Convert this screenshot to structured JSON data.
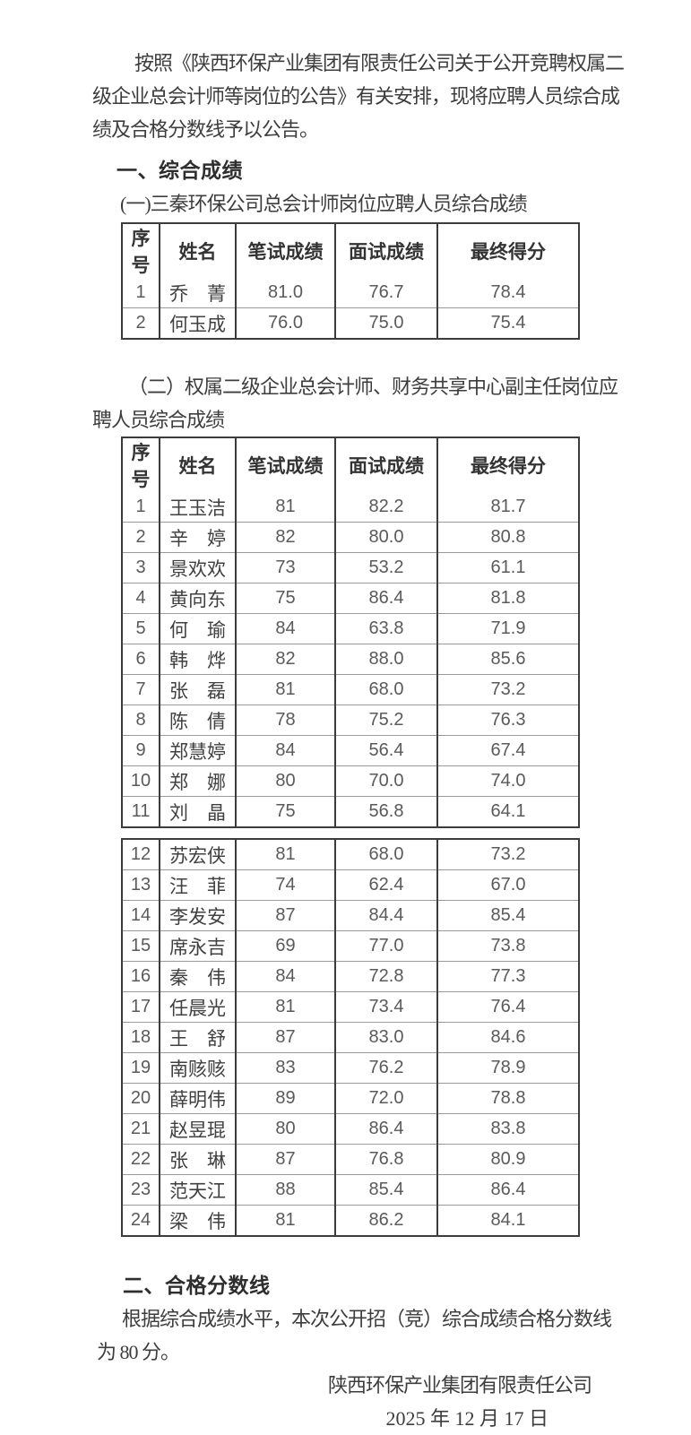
{
  "page": {
    "intro_lines": [
      "按照《陕西环保产业集团有限责任公司关于公开竞聘权属二",
      "级企业总会计师等岗位的公告》有关安排，现将应聘人员综合成",
      "绩及合格分数线予以公告。"
    ],
    "section1": {
      "heading": "一、综合成绩",
      "table1_title": "(一)三秦环保公司总会计师岗位应聘人员综合成绩",
      "table1": {
        "headers": [
          "序号",
          "姓名",
          "笔试成绩",
          "面试成绩",
          "最终得分"
        ],
        "rows": [
          [
            "1",
            "乔　菁",
            "81.0",
            "76.7",
            "78.4"
          ],
          [
            "2",
            "何玉成",
            "76.0",
            "75.0",
            "75.4"
          ]
        ]
      },
      "table2_title_lines": [
        "（二）权属二级企业总会计师、财务共享中心副主任岗位应",
        "聘人员综合成绩"
      ],
      "table2": {
        "headers": [
          "序号",
          "姓名",
          "笔试成绩",
          "面试成绩",
          "最终得分"
        ],
        "rows_part1": [
          [
            "1",
            "王玉洁",
            "81",
            "82.2",
            "81.7"
          ],
          [
            "2",
            "辛　婷",
            "82",
            "80.0",
            "80.8"
          ],
          [
            "3",
            "景欢欢",
            "73",
            "53.2",
            "61.1"
          ],
          [
            "4",
            "黄向东",
            "75",
            "86.4",
            "81.8"
          ],
          [
            "5",
            "何　瑜",
            "84",
            "63.8",
            "71.9"
          ],
          [
            "6",
            "韩　烨",
            "82",
            "88.0",
            "85.6"
          ],
          [
            "7",
            "张　磊",
            "81",
            "68.0",
            "73.2"
          ],
          [
            "8",
            "陈　倩",
            "78",
            "75.2",
            "76.3"
          ],
          [
            "9",
            "郑慧婷",
            "84",
            "56.4",
            "67.4"
          ],
          [
            "10",
            "郑　娜",
            "80",
            "70.0",
            "74.0"
          ],
          [
            "11",
            "刘　晶",
            "75",
            "56.8",
            "64.1"
          ]
        ],
        "rows_part2": [
          [
            "12",
            "苏宏侠",
            "81",
            "68.0",
            "73.2"
          ],
          [
            "13",
            "汪　菲",
            "74",
            "62.4",
            "67.0"
          ],
          [
            "14",
            "李发安",
            "87",
            "84.4",
            "85.4"
          ],
          [
            "15",
            "席永吉",
            "69",
            "77.0",
            "73.8"
          ],
          [
            "16",
            "秦　伟",
            "84",
            "72.8",
            "77.3"
          ],
          [
            "17",
            "任晨光",
            "81",
            "73.4",
            "76.4"
          ],
          [
            "18",
            "王　舒",
            "87",
            "83.0",
            "84.6"
          ],
          [
            "19",
            "南赅赅",
            "83",
            "76.2",
            "78.9"
          ],
          [
            "20",
            "薛明伟",
            "89",
            "72.0",
            "78.8"
          ],
          [
            "21",
            "赵昱琨",
            "80",
            "86.4",
            "83.8"
          ],
          [
            "22",
            "张　琳",
            "87",
            "76.8",
            "80.9"
          ],
          [
            "23",
            "范天江",
            "88",
            "85.4",
            "86.4"
          ],
          [
            "24",
            "梁　伟",
            "81",
            "86.2",
            "84.1"
          ]
        ]
      }
    },
    "section2": {
      "heading": "二、合格分数线",
      "body_lines": [
        "根据综合成绩水平，本次公开招（竞）综合成绩合格分数线",
        "为 80 分。"
      ],
      "signature": "陕西环保产业集团有限责任公司",
      "date": "2025 年 12 月 17 日"
    },
    "colors": {
      "background": "#ffffff",
      "text": "#3d3d3d",
      "table_border_dark": "#3c3c3c",
      "table_border_light": "#9a9a9a"
    }
  }
}
